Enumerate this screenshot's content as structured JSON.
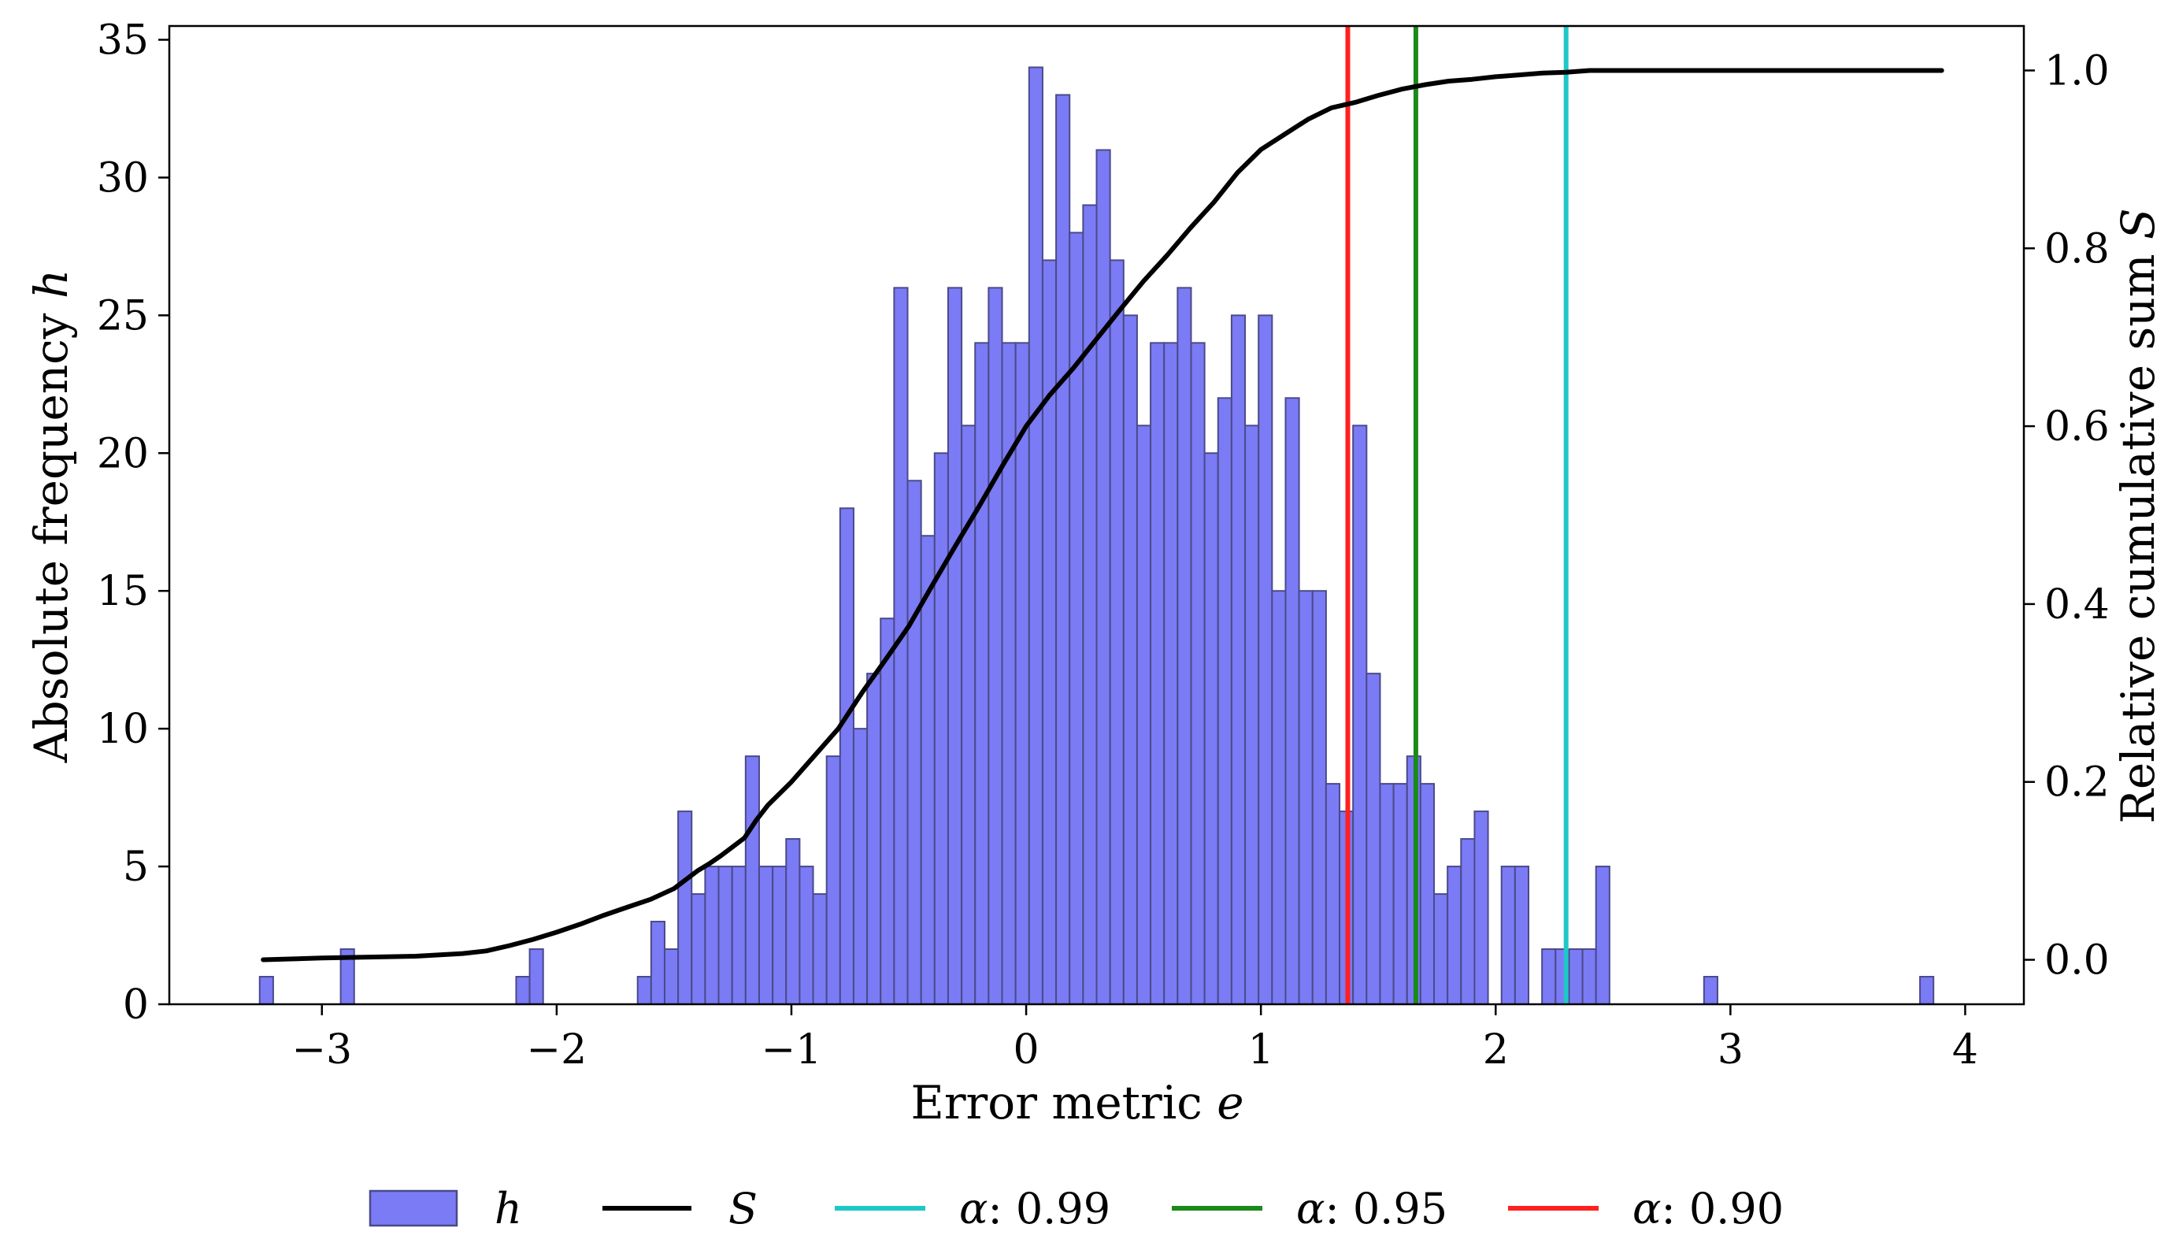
{
  "chart_data": {
    "type": "bar",
    "xlabel": "Error metric",
    "xlabel_symbol": "e",
    "ylabel_left": "Absolute frequency",
    "ylabel_left_symbol": "h",
    "ylabel_right": "Relative cumulative sum",
    "ylabel_right_symbol": "S",
    "xlim": [
      -3.65,
      4.25
    ],
    "ylim_left": [
      0,
      35.5
    ],
    "ylim_right": [
      -0.05,
      1.05
    ],
    "x_ticks": [
      {
        "value": -3,
        "label": "−3"
      },
      {
        "value": -2,
        "label": "−2"
      },
      {
        "value": -1,
        "label": "−1"
      },
      {
        "value": 0,
        "label": "0"
      },
      {
        "value": 1,
        "label": "1"
      },
      {
        "value": 2,
        "label": "2"
      },
      {
        "value": 3,
        "label": "3"
      },
      {
        "value": 4,
        "label": "4"
      }
    ],
    "y_left_ticks": [
      {
        "value": 0,
        "label": "0"
      },
      {
        "value": 5,
        "label": "5"
      },
      {
        "value": 10,
        "label": "10"
      },
      {
        "value": 15,
        "label": "15"
      },
      {
        "value": 20,
        "label": "20"
      },
      {
        "value": 25,
        "label": "25"
      },
      {
        "value": 30,
        "label": "30"
      },
      {
        "value": 35,
        "label": "35"
      }
    ],
    "y_right_ticks": [
      {
        "value": 0.0,
        "label": "0.0"
      },
      {
        "value": 0.2,
        "label": "0.2"
      },
      {
        "value": 0.4,
        "label": "0.4"
      },
      {
        "value": 0.6,
        "label": "0.6"
      },
      {
        "value": 0.8,
        "label": "0.8"
      },
      {
        "value": 1.0,
        "label": "1.0"
      }
    ],
    "grid": false,
    "legend_placement": "bottom-center",
    "histogram": {
      "name": "h",
      "color": "#7b7bf5",
      "edge_color": "#4a4a8a",
      "bin_start": -3.265,
      "bin_width": 0.0575,
      "values": [
        1,
        0,
        0,
        0,
        0,
        0,
        2,
        0,
        0,
        0,
        0,
        0,
        0,
        0,
        0,
        0,
        0,
        0,
        0,
        1,
        2,
        0,
        0,
        0,
        0,
        0,
        0,
        0,
        1,
        3,
        2,
        7,
        4,
        5,
        5,
        5,
        9,
        5,
        5,
        6,
        5,
        4,
        9,
        18,
        10,
        12,
        14,
        26,
        19,
        17,
        20,
        26,
        21,
        24,
        26,
        24,
        24,
        34,
        27,
        33,
        28,
        29,
        31,
        27,
        25,
        21,
        24,
        24,
        26,
        24,
        20,
        22,
        25,
        21,
        25,
        15,
        22,
        15,
        15,
        8,
        7,
        21,
        12,
        8,
        8,
        9,
        8,
        4,
        5,
        6,
        7,
        0,
        5,
        5,
        0,
        2,
        2,
        2,
        2,
        5,
        0,
        0,
        0,
        0,
        0,
        0,
        0,
        1,
        0,
        0,
        0,
        0,
        0,
        0,
        0,
        0,
        0,
        0,
        0,
        0,
        0,
        0,
        0,
        1
      ]
    },
    "cumulative": {
      "name": "S",
      "color": "#000000",
      "x": [
        -3.25,
        -3.0,
        -2.6,
        -2.4,
        -2.3,
        -2.2,
        -2.1,
        -2.0,
        -1.9,
        -1.8,
        -1.7,
        -1.6,
        -1.5,
        -1.45,
        -1.4,
        -1.35,
        -1.3,
        -1.2,
        -1.15,
        -1.1,
        -1.0,
        -0.9,
        -0.8,
        -0.7,
        -0.6,
        -0.5,
        -0.4,
        -0.3,
        -0.2,
        -0.1,
        0.0,
        0.1,
        0.2,
        0.3,
        0.4,
        0.5,
        0.6,
        0.7,
        0.8,
        0.9,
        1.0,
        1.1,
        1.2,
        1.3,
        1.4,
        1.5,
        1.6,
        1.7,
        1.8,
        1.9,
        2.0,
        2.1,
        2.2,
        2.3,
        2.4,
        2.5,
        2.7,
        3.0,
        3.5,
        3.9
      ],
      "values": [
        0.0,
        0.002,
        0.004,
        0.007,
        0.01,
        0.016,
        0.023,
        0.031,
        0.04,
        0.05,
        0.059,
        0.068,
        0.08,
        0.09,
        0.1,
        0.108,
        0.117,
        0.137,
        0.157,
        0.174,
        0.2,
        0.23,
        0.26,
        0.3,
        0.337,
        0.375,
        0.421,
        0.466,
        0.51,
        0.556,
        0.6,
        0.635,
        0.665,
        0.698,
        0.731,
        0.763,
        0.792,
        0.823,
        0.852,
        0.885,
        0.911,
        0.928,
        0.945,
        0.958,
        0.964,
        0.972,
        0.979,
        0.984,
        0.988,
        0.99,
        0.993,
        0.995,
        0.997,
        0.998,
        1.0,
        1.0,
        1.0,
        1.0,
        1.0,
        1.0
      ]
    },
    "thresholds": [
      {
        "name": "α: 0.99",
        "x": 2.3,
        "color": "#1ec8c8"
      },
      {
        "name": "α: 0.95",
        "x": 1.66,
        "color": "#1a8a1a"
      },
      {
        "name": "α: 0.90",
        "x": 1.37,
        "color": "#ff2020"
      }
    ],
    "legend": [
      {
        "kind": "patch",
        "label": "h",
        "italic": true
      },
      {
        "kind": "line",
        "label": "S",
        "italic": true
      },
      {
        "kind": "line",
        "symbol": "α",
        "label": ": 0.99"
      },
      {
        "kind": "line",
        "symbol": "α",
        "label": ": 0.95"
      },
      {
        "kind": "line",
        "symbol": "α",
        "label": ": 0.90"
      }
    ]
  }
}
